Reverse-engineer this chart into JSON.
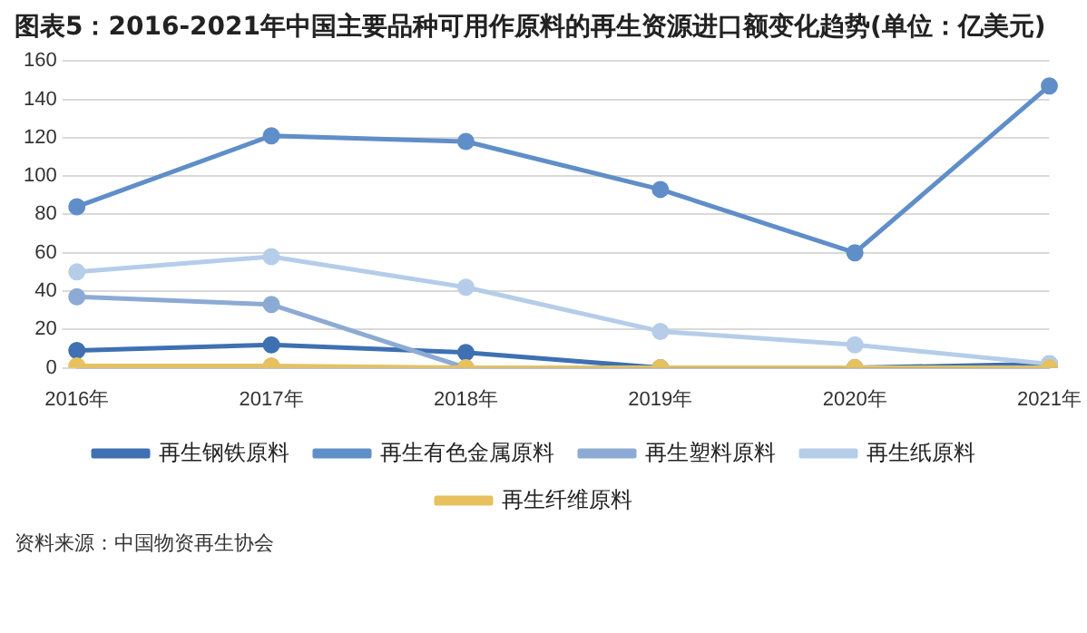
{
  "chart_data": {
    "type": "line",
    "title": "图表5：2016-2021年中国主要品种可用作原料的再生资源进口额变化趋势(单位：亿美元)",
    "categories": [
      "2016年",
      "2017年",
      "2018年",
      "2019年",
      "2020年",
      "2021年"
    ],
    "series": [
      {
        "name": "再生钢铁原料",
        "color": "#3e70b2",
        "values": [
          9,
          12,
          8,
          0,
          0,
          2
        ]
      },
      {
        "name": "再生有色金属原料",
        "color": "#5f8ec8",
        "values": [
          84,
          121,
          118,
          93,
          60,
          147
        ]
      },
      {
        "name": "再生塑料原料",
        "color": "#8caad4",
        "values": [
          37,
          33,
          0,
          0,
          0,
          0
        ]
      },
      {
        "name": "再生纸原料",
        "color": "#b5cde9",
        "values": [
          50,
          58,
          42,
          19,
          12,
          2
        ]
      },
      {
        "name": "再生纤维原料",
        "color": "#e6c15e",
        "values": [
          1,
          1,
          0,
          0,
          0,
          0
        ]
      }
    ],
    "ylim": [
      0,
      160
    ],
    "yticks": [
      0,
      20,
      40,
      60,
      80,
      100,
      120,
      140,
      160
    ],
    "grid": "y",
    "legend": "bottom",
    "marker": "circle",
    "line_style": "solid",
    "annotations": [
      "资料来源：中国物资再生协会"
    ]
  }
}
